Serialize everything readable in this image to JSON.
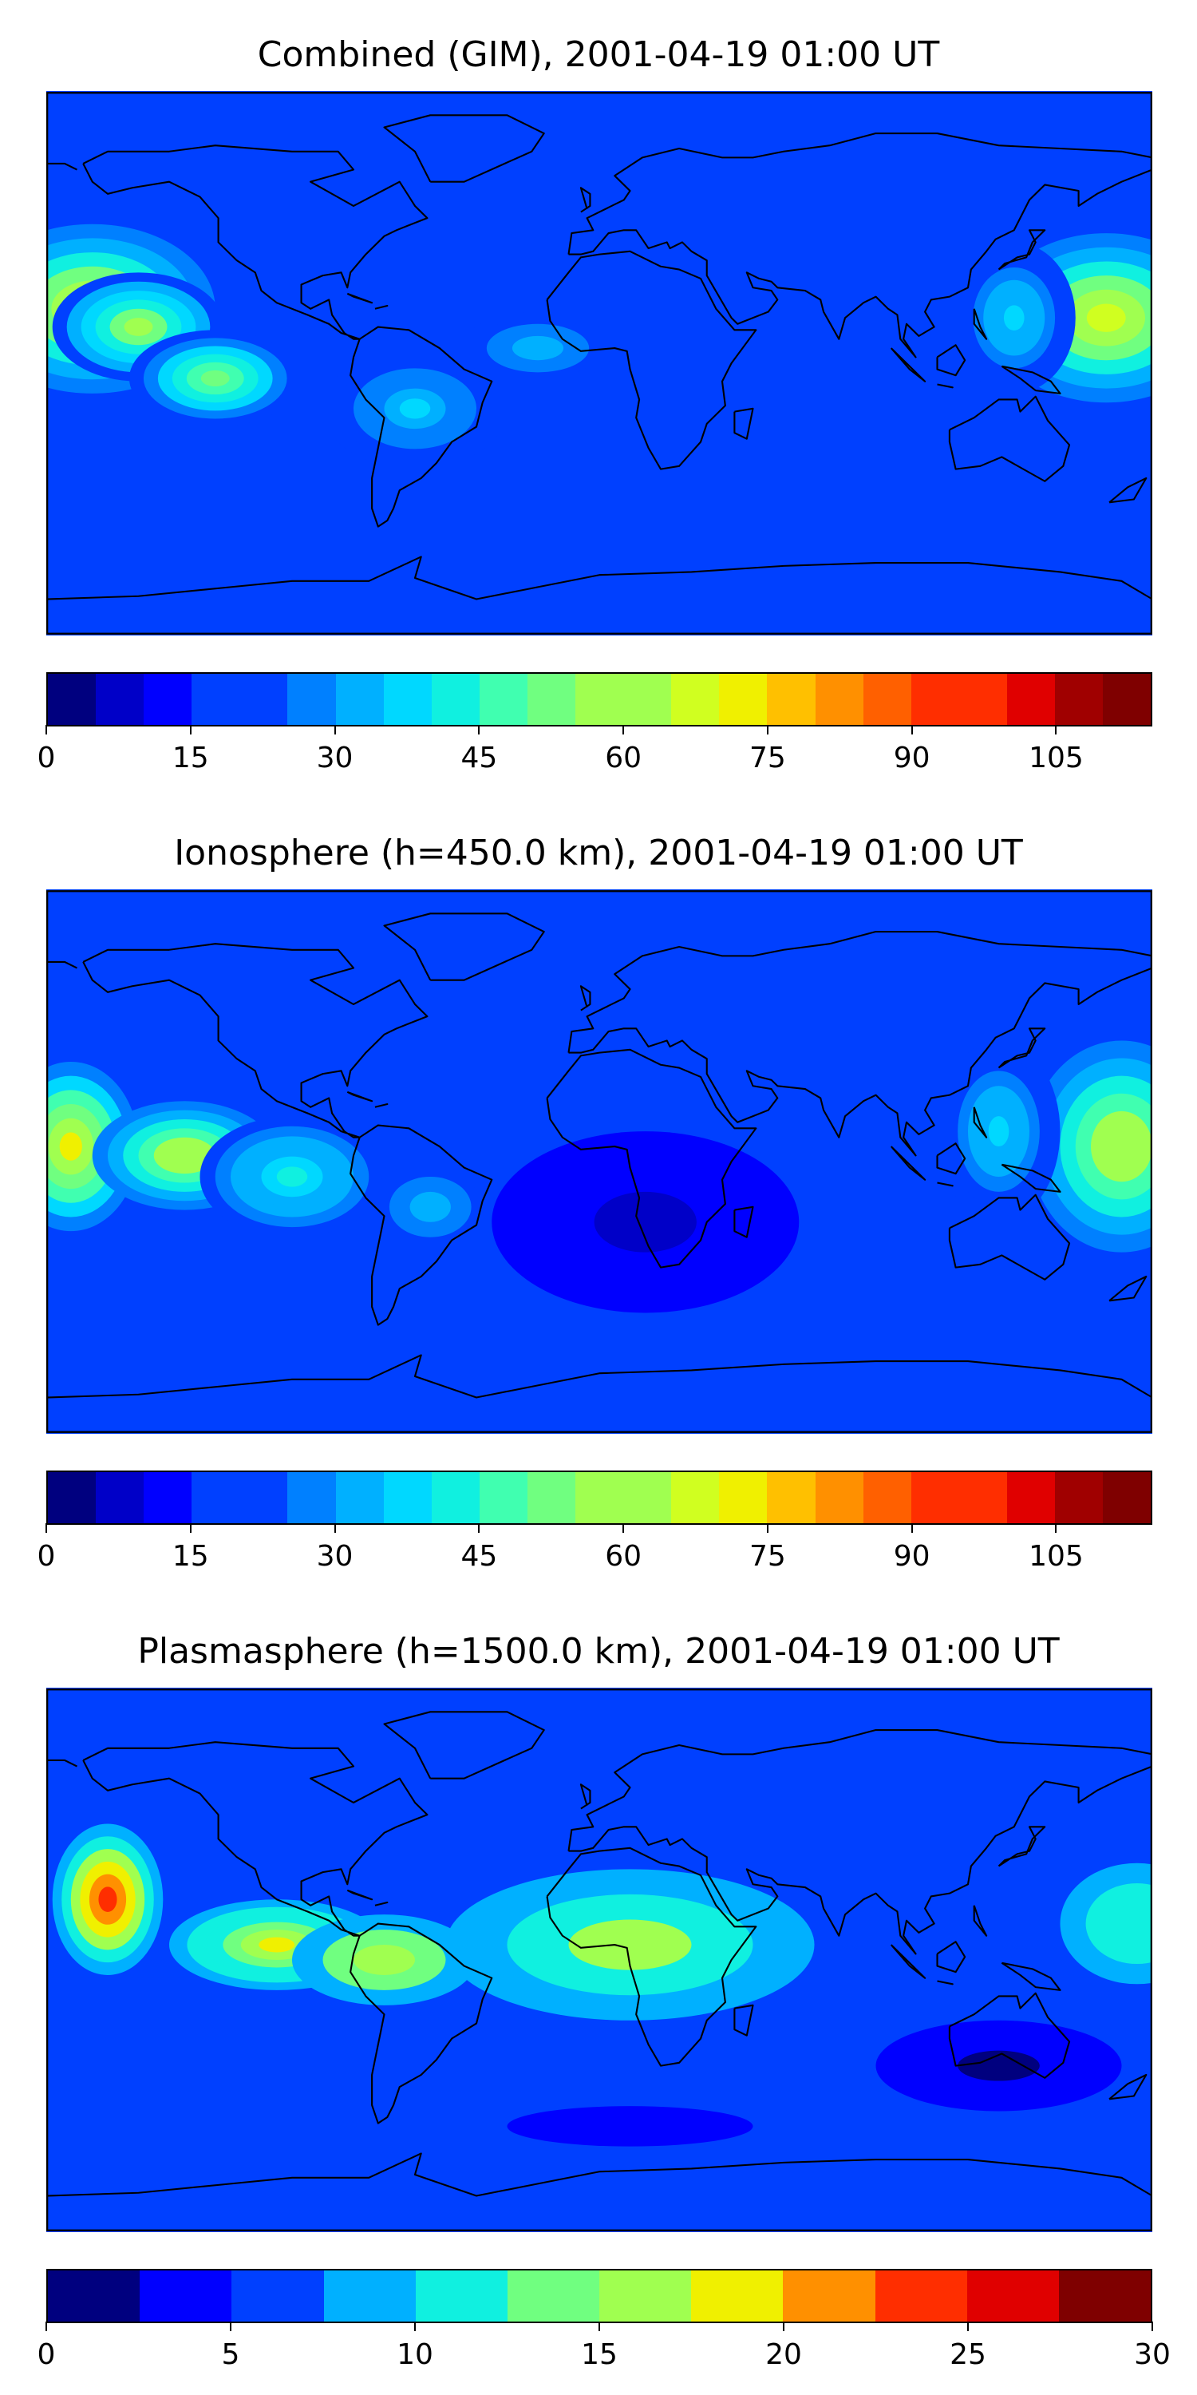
{
  "figure": {
    "maps": [
      {
        "title": "Combined (GIM), 2001-04-19 01:00 UT",
        "colorbar": {
          "ticks": [
            "0",
            "15",
            "30",
            "45",
            "60",
            "75",
            "90",
            "105"
          ],
          "tick_values": [
            0,
            15,
            30,
            45,
            60,
            75,
            90,
            105
          ],
          "range": [
            0,
            115
          ],
          "levels": 23
        },
        "blobs": [
          {
            "lon": -165,
            "lat": 18,
            "rx": 40,
            "ry": 28,
            "v": 50
          },
          {
            "lon": -150,
            "lat": 12,
            "rx": 28,
            "ry": 18,
            "v": 40
          },
          {
            "lon": -125,
            "lat": -5,
            "rx": 28,
            "ry": 16,
            "v": 35
          },
          {
            "lon": 165,
            "lat": 15,
            "rx": 38,
            "ry": 28,
            "v": 50
          },
          {
            "lon": 135,
            "lat": 15,
            "rx": 20,
            "ry": 25,
            "v": 20
          },
          {
            "lon": -60,
            "lat": -15,
            "rx": 30,
            "ry": 20,
            "v": 18
          },
          {
            "lon": -20,
            "lat": 5,
            "rx": 25,
            "ry": 12,
            "v": 15
          }
        ]
      },
      {
        "title": "Ionosphere  (h=450.0 km), 2001-04-19 01:00 UT",
        "colorbar": {
          "ticks": [
            "0",
            "15",
            "30",
            "45",
            "60",
            "75",
            "90",
            "105"
          ],
          "tick_values": [
            0,
            15,
            30,
            45,
            60,
            75,
            90,
            105
          ],
          "range": [
            0,
            115
          ],
          "levels": 23
        },
        "blobs": [
          {
            "lon": -172,
            "lat": 5,
            "rx": 22,
            "ry": 28,
            "v": 55
          },
          {
            "lon": -135,
            "lat": 2,
            "rx": 30,
            "ry": 18,
            "v": 45
          },
          {
            "lon": -100,
            "lat": -5,
            "rx": 30,
            "ry": 20,
            "v": 25
          },
          {
            "lon": 170,
            "lat": 5,
            "rx": 30,
            "ry": 35,
            "v": 45
          },
          {
            "lon": 130,
            "lat": 10,
            "rx": 20,
            "ry": 30,
            "v": 20
          },
          {
            "lon": -55,
            "lat": -15,
            "rx": 20,
            "ry": 15,
            "v": 15
          },
          {
            "lon": 15,
            "lat": -20,
            "rx": 50,
            "ry": 30,
            "v": -10
          }
        ]
      },
      {
        "title": "Plasmasphere (h=1500.0 km), 2001-04-19 01:00 UT",
        "colorbar": {
          "ticks": [
            "0",
            "5",
            "10",
            "15",
            "20",
            "25",
            "30"
          ],
          "tick_values": [
            0,
            5,
            10,
            15,
            20,
            25,
            30
          ],
          "range": [
            0,
            30
          ],
          "levels": 12
        },
        "blobs": [
          {
            "lon": -160,
            "lat": 20,
            "rx": 18,
            "ry": 25,
            "v": 18
          },
          {
            "lon": -105,
            "lat": 5,
            "rx": 35,
            "ry": 15,
            "v": 12
          },
          {
            "lon": -70,
            "lat": 0,
            "rx": 30,
            "ry": 15,
            "v": 10
          },
          {
            "lon": 10,
            "lat": 5,
            "rx": 60,
            "ry": 25,
            "v": 9
          },
          {
            "lon": 175,
            "lat": 12,
            "rx": 25,
            "ry": 20,
            "v": 6
          },
          {
            "lon": 130,
            "lat": -35,
            "rx": 40,
            "ry": 15,
            "v": -4
          },
          {
            "lon": 10,
            "lat": -55,
            "rx": 60,
            "ry": 10,
            "v": -3
          }
        ]
      }
    ],
    "palette": [
      "#00007f",
      "#0000c8",
      "#0000ff",
      "#0040ff",
      "#0080ff",
      "#00b0ff",
      "#00d8ff",
      "#10f0e0",
      "#40ffb0",
      "#70ff80",
      "#a0ff50",
      "#d0ff20",
      "#f0f000",
      "#ffc000",
      "#ff9000",
      "#ff6000",
      "#ff2e00",
      "#e00000",
      "#a00000",
      "#7f0000"
    ]
  }
}
